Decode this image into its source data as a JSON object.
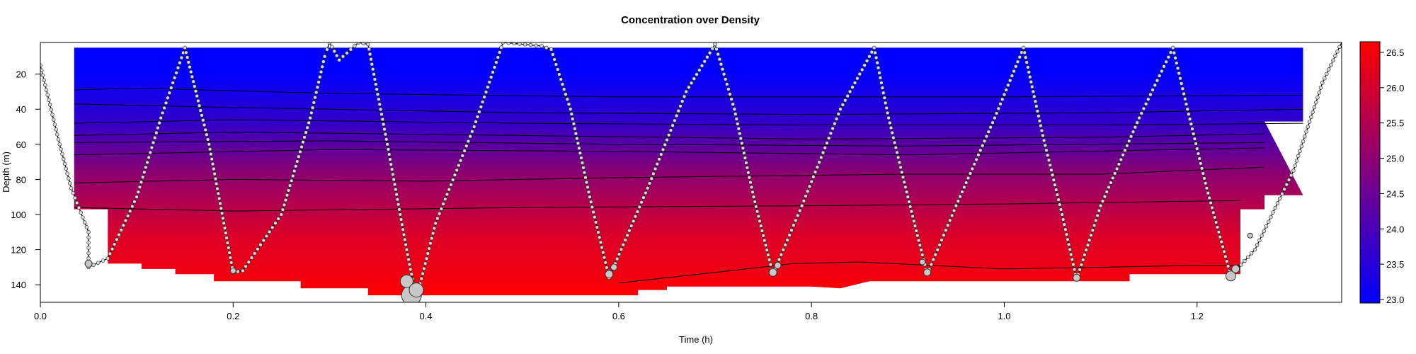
{
  "chart_data": {
    "type": "heatmap",
    "title": "Concentration over Density",
    "xlabel": "Time (h)",
    "ylabel": "Depth (m)",
    "xlim": [
      0.0,
      1.35
    ],
    "ylim": [
      150,
      2
    ],
    "x_ticks": [
      "0.0",
      "0.2",
      "0.4",
      "0.6",
      "0.8",
      "1.0",
      "1.2"
    ],
    "y_ticks": [
      "20",
      "40",
      "60",
      "80",
      "100",
      "120",
      "140"
    ],
    "colorbar": {
      "min": 22.95,
      "max": 26.65,
      "ticks": [
        "23.0",
        "23.5",
        "24.0",
        "24.5",
        "25.0",
        "25.5",
        "26.0",
        "26.5"
      ],
      "low_color": "#0000ff",
      "high_color": "#ff0000"
    },
    "heat_region": {
      "density_top": 23.0,
      "density_bottom": 26.6,
      "top_depth": 5,
      "bottom_boundary": [
        [
          0.035,
          97
        ],
        [
          0.07,
          97
        ],
        [
          0.07,
          128
        ],
        [
          0.105,
          128
        ],
        [
          0.105,
          131
        ],
        [
          0.14,
          131
        ],
        [
          0.14,
          134
        ],
        [
          0.18,
          134
        ],
        [
          0.18,
          138
        ],
        [
          0.27,
          138
        ],
        [
          0.27,
          142
        ],
        [
          0.34,
          142
        ],
        [
          0.34,
          146
        ],
        [
          0.62,
          146
        ],
        [
          0.62,
          143
        ],
        [
          0.65,
          143
        ],
        [
          0.65,
          141
        ],
        [
          0.8,
          141
        ],
        [
          0.83,
          142
        ],
        [
          0.86,
          138
        ],
        [
          1.13,
          138
        ],
        [
          1.13,
          134
        ],
        [
          1.245,
          134
        ],
        [
          1.245,
          97
        ],
        [
          1.27,
          97
        ],
        [
          1.27,
          89
        ],
        [
          1.31,
          89
        ]
      ],
      "right_boundary": [
        [
          1.31,
          5
        ],
        [
          1.31,
          47
        ],
        [
          1.27,
          47
        ]
      ]
    },
    "isopycnals": [
      [
        [
          0.035,
          29
        ],
        [
          0.1,
          28
        ],
        [
          0.3,
          31
        ],
        [
          0.6,
          33
        ],
        [
          1.0,
          33
        ],
        [
          1.31,
          32
        ]
      ],
      [
        [
          0.035,
          37
        ],
        [
          0.2,
          39
        ],
        [
          0.5,
          42
        ],
        [
          0.8,
          43
        ],
        [
          1.1,
          42
        ],
        [
          1.31,
          40
        ]
      ],
      [
        [
          0.035,
          48
        ],
        [
          0.2,
          46
        ],
        [
          0.5,
          48
        ],
        [
          0.8,
          49
        ],
        [
          1.1,
          49
        ],
        [
          1.31,
          48
        ]
      ],
      [
        [
          0.035,
          55
        ],
        [
          0.2,
          53
        ],
        [
          0.5,
          55
        ],
        [
          0.8,
          57
        ],
        [
          1.1,
          56
        ],
        [
          1.27,
          54
        ]
      ],
      [
        [
          0.035,
          59
        ],
        [
          0.3,
          58
        ],
        [
          0.6,
          60
        ],
        [
          0.9,
          61
        ],
        [
          1.27,
          59
        ]
      ],
      [
        [
          0.035,
          66
        ],
        [
          0.3,
          63
        ],
        [
          0.6,
          64
        ],
        [
          0.9,
          66
        ],
        [
          1.27,
          62
        ]
      ],
      [
        [
          0.035,
          82
        ],
        [
          0.2,
          80
        ],
        [
          0.4,
          81
        ],
        [
          0.6,
          79
        ],
        [
          0.9,
          77
        ],
        [
          1.1,
          77
        ],
        [
          1.27,
          73
        ]
      ],
      [
        [
          0.035,
          96
        ],
        [
          0.2,
          98
        ],
        [
          0.5,
          96
        ],
        [
          0.8,
          95
        ],
        [
          1.0,
          94
        ],
        [
          1.245,
          92
        ]
      ],
      [
        [
          0.6,
          139
        ],
        [
          0.7,
          133
        ],
        [
          0.78,
          128
        ],
        [
          0.85,
          127
        ],
        [
          1.0,
          131
        ],
        [
          1.2,
          129
        ],
        [
          1.245,
          129
        ]
      ]
    ],
    "glider_track": [
      [
        0.0,
        15
      ],
      [
        0.02,
        60
      ],
      [
        0.032,
        85
      ],
      [
        0.05,
        110
      ],
      [
        0.05,
        128
      ],
      [
        0.05,
        130
      ],
      [
        0.07,
        125
      ],
      [
        0.1,
        90
      ],
      [
        0.125,
        45
      ],
      [
        0.15,
        5
      ],
      [
        0.175,
        60
      ],
      [
        0.2,
        133
      ],
      [
        0.21,
        132
      ],
      [
        0.25,
        100
      ],
      [
        0.28,
        45
      ],
      [
        0.295,
        10
      ],
      [
        0.3,
        2
      ],
      [
        0.31,
        12
      ],
      [
        0.33,
        2
      ],
      [
        0.34,
        3
      ],
      [
        0.36,
        60
      ],
      [
        0.38,
        120
      ],
      [
        0.39,
        148
      ],
      [
        0.41,
        105
      ],
      [
        0.45,
        50
      ],
      [
        0.48,
        2
      ],
      [
        0.52,
        4
      ],
      [
        0.53,
        6
      ],
      [
        0.55,
        40
      ],
      [
        0.57,
        90
      ],
      [
        0.59,
        136
      ],
      [
        0.63,
        85
      ],
      [
        0.67,
        30
      ],
      [
        0.7,
        3
      ],
      [
        0.72,
        40
      ],
      [
        0.74,
        90
      ],
      [
        0.76,
        134
      ],
      [
        0.79,
        95
      ],
      [
        0.83,
        40
      ],
      [
        0.865,
        5
      ],
      [
        0.88,
        45
      ],
      [
        0.9,
        90
      ],
      [
        0.92,
        134
      ],
      [
        0.95,
        95
      ],
      [
        0.99,
        45
      ],
      [
        1.02,
        5
      ],
      [
        1.04,
        55
      ],
      [
        1.06,
        100
      ],
      [
        1.075,
        137
      ],
      [
        1.1,
        95
      ],
      [
        1.14,
        45
      ],
      [
        1.175,
        5
      ],
      [
        1.19,
        40
      ],
      [
        1.21,
        85
      ],
      [
        1.235,
        135
      ],
      [
        1.26,
        120
      ],
      [
        1.3,
        75
      ],
      [
        1.33,
        25
      ],
      [
        1.35,
        2
      ]
    ],
    "bubble_sizes": [
      {
        "x": 0.385,
        "y": 146,
        "size": 28
      },
      {
        "x": 0.38,
        "y": 138,
        "size": 18
      },
      {
        "x": 0.39,
        "y": 143,
        "size": 20
      },
      {
        "x": 0.05,
        "y": 128,
        "size": 10
      },
      {
        "x": 0.2,
        "y": 132,
        "size": 8
      },
      {
        "x": 0.59,
        "y": 134,
        "size": 11
      },
      {
        "x": 0.595,
        "y": 130,
        "size": 9
      },
      {
        "x": 0.76,
        "y": 133,
        "size": 11
      },
      {
        "x": 0.765,
        "y": 129,
        "size": 9
      },
      {
        "x": 0.92,
        "y": 133,
        "size": 10
      },
      {
        "x": 0.915,
        "y": 127,
        "size": 8
      },
      {
        "x": 1.075,
        "y": 136,
        "size": 10
      },
      {
        "x": 1.235,
        "y": 135,
        "size": 14
      },
      {
        "x": 1.24,
        "y": 131,
        "size": 11
      },
      {
        "x": 1.255,
        "y": 112,
        "size": 7
      }
    ]
  }
}
